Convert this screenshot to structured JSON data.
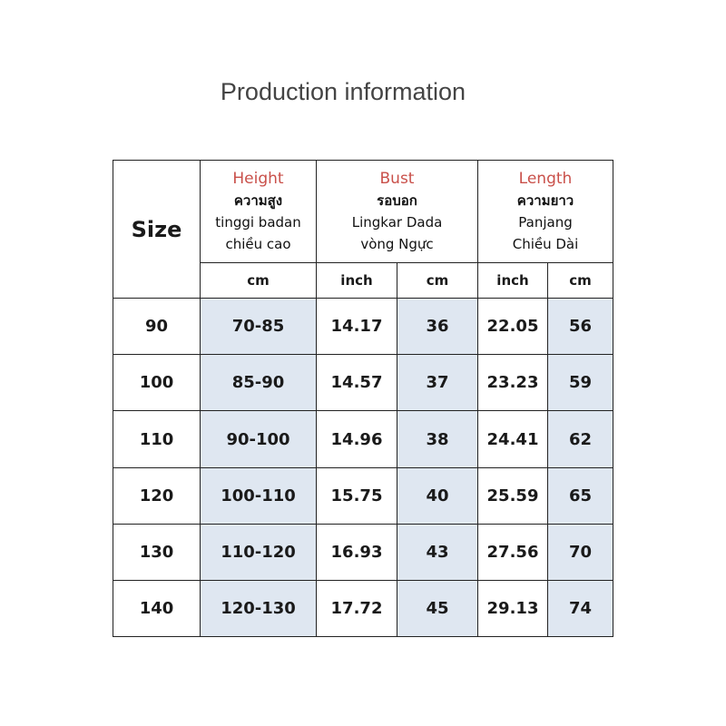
{
  "title": "Production information",
  "table": {
    "size_header": "Size",
    "groups": [
      {
        "title": "Height",
        "lines": [
          "ความสูง",
          "tinggi badan",
          "chiều cao"
        ],
        "units": [
          "cm"
        ]
      },
      {
        "title": "Bust",
        "lines": [
          "รอบอก",
          "Lingkar Dada",
          "vòng Ngực"
        ],
        "units": [
          "inch",
          "cm"
        ]
      },
      {
        "title": "Length",
        "lines": [
          "ความยาว",
          "Panjang",
          "Chiều Dài"
        ],
        "units": [
          "inch",
          "cm"
        ]
      }
    ],
    "rows": [
      [
        "90",
        "70-85",
        "14.17",
        "36",
        "22.05",
        "56"
      ],
      [
        "100",
        "85-90",
        "14.57",
        "37",
        "23.23",
        "59"
      ],
      [
        "110",
        "90-100",
        "14.96",
        "38",
        "24.41",
        "62"
      ],
      [
        "120",
        "100-110",
        "15.75",
        "40",
        "25.59",
        "65"
      ],
      [
        "130",
        "110-120",
        "16.93",
        "43",
        "27.56",
        "70"
      ],
      [
        "140",
        "120-130",
        "17.72",
        "45",
        "29.13",
        "74"
      ]
    ]
  }
}
